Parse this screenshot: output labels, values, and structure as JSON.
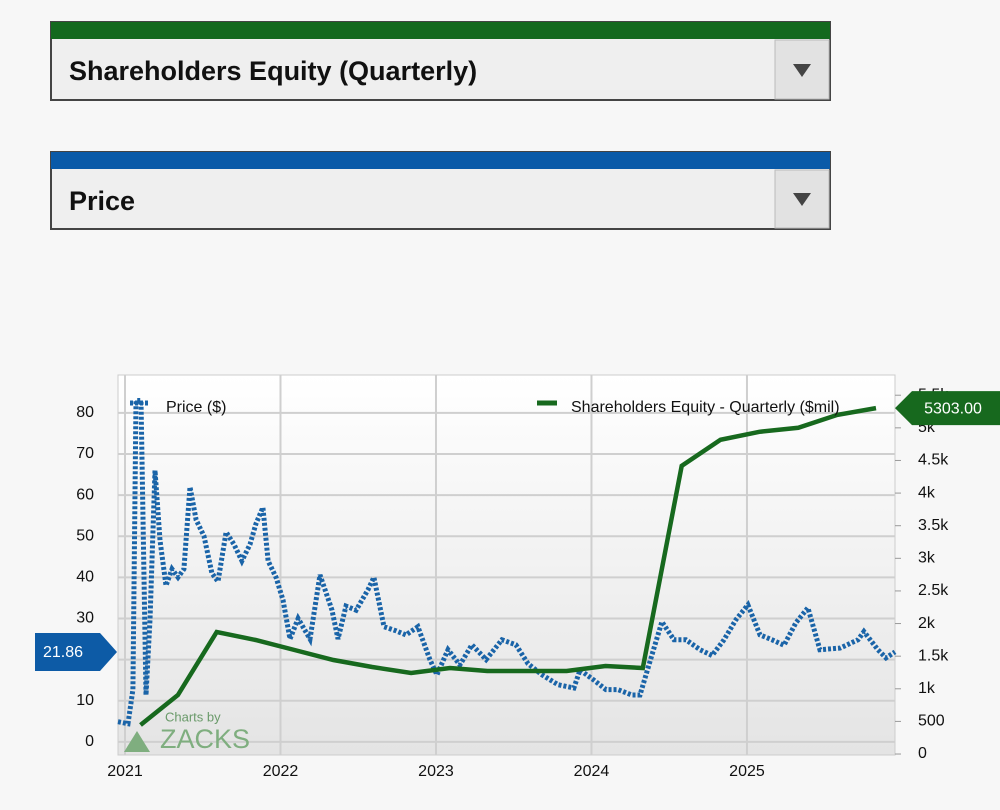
{
  "dropdowns": [
    {
      "label": "Shareholders Equity (Quarterly)"
    },
    {
      "label": "Price"
    }
  ],
  "watermark": {
    "line1": "Charts by",
    "line2": "ZACKS"
  },
  "chart_data": {
    "type": "line",
    "xlim": [
      2020.955,
      2025.952
    ],
    "xticks": [
      2021,
      2022,
      2023,
      2024,
      2025
    ],
    "ylim": [
      -3.2,
      89.2
    ],
    "yticks": [
      0,
      10,
      20,
      30,
      40,
      50,
      60,
      70,
      80
    ],
    "y2lim": [
      -15,
      5810
    ],
    "y2ticks": [
      0,
      500,
      {
        "value": 1000,
        "label": "1k"
      },
      {
        "value": 1500,
        "label": "1.5k"
      },
      {
        "value": 2000,
        "label": "2k"
      },
      {
        "value": 2500,
        "label": "2.5k"
      },
      {
        "value": 3000,
        "label": "3k"
      },
      {
        "value": 3500,
        "label": "3.5k"
      },
      {
        "value": 4000,
        "label": "4k"
      },
      {
        "value": 4500,
        "label": "4.5k"
      },
      {
        "value": 5000,
        "label": "5k"
      },
      {
        "value": 5500,
        "label": "5.5k"
      }
    ],
    "grid": true,
    "series": [
      {
        "name": "Price ($)",
        "color": "#1a64a8",
        "dash": true,
        "x": [
          2020.955,
          2021.019,
          2021.051,
          2021.071,
          2021.103,
          2021.135,
          2021.161,
          2021.193,
          2021.225,
          2021.264,
          2021.302,
          2021.341,
          2021.379,
          2021.418,
          2021.457,
          2021.508,
          2021.559,
          2021.598,
          2021.65,
          2021.701,
          2021.752,
          2021.804,
          2021.842,
          2021.887,
          2021.92,
          2021.971,
          2022.016,
          2022.061,
          2022.113,
          2022.19,
          2022.254,
          2022.331,
          2022.37,
          2022.421,
          2022.486,
          2022.563,
          2022.601,
          2022.666,
          2022.743,
          2022.807,
          2022.884,
          2022.961,
          2023.006,
          2023.077,
          2023.154,
          2023.231,
          2023.322,
          2023.424,
          2023.514,
          2023.592,
          2023.682,
          2023.785,
          2023.887,
          2023.926,
          2024.016,
          2024.093,
          2024.17,
          2024.26,
          2024.312,
          2024.389,
          2024.453,
          2024.531,
          2024.608,
          2024.698,
          2024.775,
          2024.852,
          2024.929,
          2025.006,
          2025.084,
          2025.161,
          2025.238,
          2025.315,
          2025.392,
          2025.469,
          2025.598,
          2025.714,
          2025.752,
          2025.842,
          2025.894,
          2025.952
        ],
        "values": [
          4.9,
          4.4,
          12.7,
          83,
          83,
          11.4,
          29.7,
          66,
          49,
          38,
          42,
          40,
          42,
          62,
          54,
          50,
          41,
          39,
          51,
          48,
          44,
          48,
          53,
          57,
          44,
          40,
          34.5,
          25,
          30,
          25,
          40.6,
          32,
          25,
          33,
          32,
          37,
          40,
          28,
          27,
          26,
          28,
          20,
          16.3,
          22.4,
          18.7,
          23.6,
          20,
          24.8,
          23.6,
          19,
          16.3,
          13.9,
          13.1,
          17.5,
          15,
          12.7,
          12.7,
          11.4,
          11.4,
          21.2,
          29.2,
          24.8,
          24.8,
          22.4,
          21,
          24.8,
          29.7,
          33.3,
          26,
          24.8,
          23.5,
          29,
          32.6,
          22.4,
          22.8,
          24.8,
          26.8,
          22.4,
          20.4,
          21.86
        ]
      },
      {
        "name": "Shareholders Equity - Quarterly ($mil)",
        "color": "#17691e",
        "axis": "y2",
        "x": [
          2021.1,
          2021.34,
          2021.59,
          2021.84,
          2022.09,
          2022.34,
          2022.59,
          2022.84,
          2023.09,
          2023.33,
          2023.59,
          2023.84,
          2024.09,
          2024.33,
          2024.58,
          2024.83,
          2025.08,
          2025.33,
          2025.58,
          2025.83
        ],
        "values": [
          445,
          905,
          1871,
          1748,
          1595,
          1442,
          1334,
          1242,
          1319,
          1273,
          1273,
          1273,
          1350,
          1319,
          4417,
          4816,
          4939,
          5000,
          5199,
          5303
        ],
        "value_labels": [
          null,
          null,
          null,
          null,
          null,
          null,
          null,
          null,
          null,
          null,
          null,
          null,
          null,
          null,
          null,
          null,
          null,
          null,
          null,
          "5303.00"
        ]
      }
    ]
  }
}
